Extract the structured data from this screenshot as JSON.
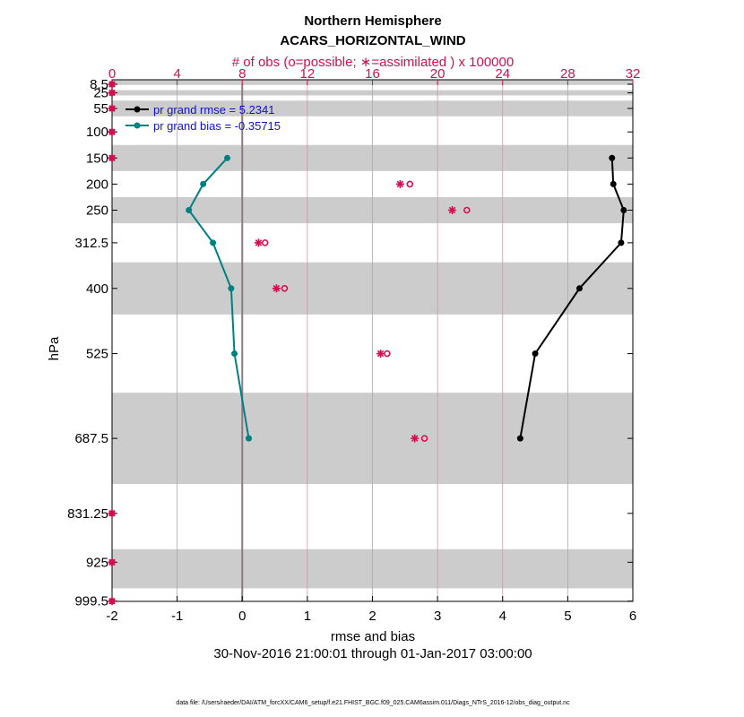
{
  "chart_data": {
    "type": "line",
    "title": "Northern Hemisphere",
    "subtitle": "ACARS_HORIZONTAL_WIND",
    "top_axis_label": "# of obs (o=possible; ∗=assimilated ) x 100000",
    "xlabel": "rmse and bias",
    "ylabel": "hPa",
    "date_range": "30-Nov-2016 21:00:01 through 01-Jan-2017 03:00:00",
    "footer": "data file: /Users/raeder/DAI/ATM_forcXX/CAM6_setup/f.e21.FHIST_BGC.f09_025.CAM6assim.011/Diags_NTrS_2016-12/obs_diag_output.nc",
    "xlim": [
      -2,
      6
    ],
    "xticks": [
      "-2",
      "-1",
      "0",
      "1",
      "2",
      "3",
      "4",
      "5",
      "6"
    ],
    "top_xlim": [
      0,
      32
    ],
    "top_xticks": [
      "0",
      "4",
      "8",
      "12",
      "16",
      "20",
      "24",
      "28",
      "32"
    ],
    "ylim_hPa": [
      1000,
      0
    ],
    "yticks": [
      "8.5",
      "25",
      "55",
      "100",
      "150",
      "200",
      "250",
      "312.5",
      "400",
      "525",
      "687.5",
      "831.25",
      "925",
      "999.5"
    ],
    "levels": [
      8.5,
      25,
      55,
      100,
      150,
      200,
      250,
      312.5,
      400,
      525,
      687.5,
      831.25,
      925,
      999.5
    ],
    "shaded_bands_hPa": [
      [
        0,
        10
      ],
      [
        20,
        30
      ],
      [
        40,
        70
      ],
      [
        125,
        175
      ],
      [
        225,
        275
      ],
      [
        350,
        450
      ],
      [
        600,
        775
      ],
      [
        900,
        975
      ]
    ],
    "series": [
      {
        "name": "pr grand rmse = 5.2341",
        "color": "#000000",
        "points": [
          [
            5.68,
            150
          ],
          [
            5.7,
            200
          ],
          [
            5.86,
            250
          ],
          [
            5.82,
            312.5
          ],
          [
            5.18,
            400
          ],
          [
            4.5,
            525
          ],
          [
            4.27,
            687.5
          ]
        ]
      },
      {
        "name": "pr grand bias = -0.35715",
        "color": "#008080",
        "points": [
          [
            -0.23,
            150
          ],
          [
            -0.6,
            200
          ],
          [
            -0.82,
            250
          ],
          [
            -0.45,
            312.5
          ],
          [
            -0.17,
            400
          ],
          [
            -0.12,
            525
          ],
          [
            0.1,
            687.5
          ]
        ]
      }
    ],
    "obs_assimilated": [
      [
        17.7,
        200
      ],
      [
        20.9,
        250
      ],
      [
        9.0,
        312.5
      ],
      [
        10.1,
        400
      ],
      [
        16.5,
        525
      ],
      [
        18.6,
        687.5
      ]
    ],
    "obs_possible": [
      [
        18.3,
        200
      ],
      [
        21.8,
        250
      ],
      [
        9.4,
        312.5
      ],
      [
        10.6,
        400
      ],
      [
        16.9,
        525
      ],
      [
        19.2,
        687.5
      ]
    ],
    "obs_zero_levels": [
      8.5,
      25,
      55,
      100,
      150,
      831.25,
      925,
      999.5
    ],
    "colors": {
      "obs": "#d01050",
      "band": "#cccccc",
      "grid": "#c89aaa",
      "zero": "#8a7b85"
    }
  }
}
